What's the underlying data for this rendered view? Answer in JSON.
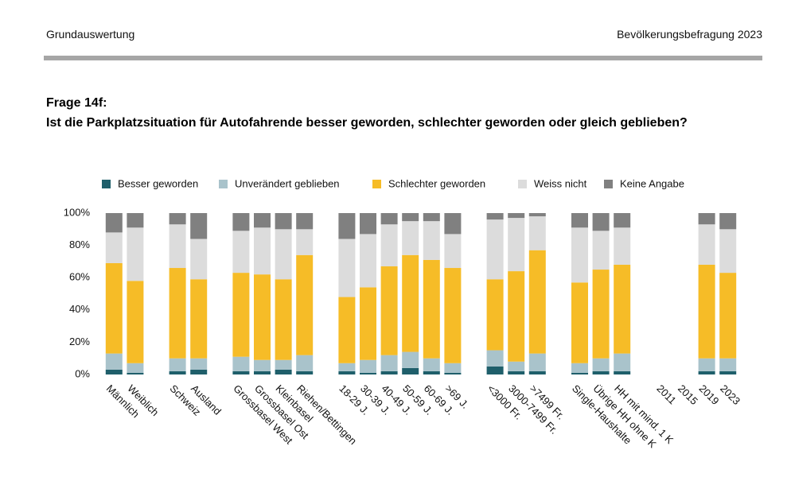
{
  "header": {
    "left": "Grundauswertung",
    "right": "Bevölkerungsbefragung 2023"
  },
  "question": {
    "label": "Frage 14f:",
    "text": "Ist die Parkplatzsituation für Autofahrende besser geworden, schlechter geworden oder gleich geblieben?"
  },
  "chart_data": {
    "type": "stacked_bar",
    "categories": [
      "Männlich",
      "Weiblich",
      null,
      "Schweiz",
      "Ausland",
      null,
      "Grossbasel West",
      "Grossbasel Ost",
      "Kleinbasel",
      "Riehen/Bettingen",
      null,
      "18-29 J.",
      "30-39 J.",
      "40-49 J.",
      "50-59 J.",
      "60-69 J.",
      ">69 J.",
      null,
      "<3000 Fr.",
      "3000-7499 Fr.",
      ">7499 Fr.",
      null,
      "Single-Haushalte",
      "Übrige HH ohne K",
      "HH mit mind. 1 K",
      null,
      "2011",
      "2015",
      "2019",
      "2023"
    ],
    "series": [
      {
        "name": "Besser geworden",
        "color": "#1f5f6b",
        "values": [
          3,
          1,
          null,
          2,
          3,
          null,
          2,
          2,
          3,
          2,
          null,
          2,
          1,
          2,
          4,
          2,
          1,
          null,
          5,
          2,
          2,
          null,
          1,
          2,
          2,
          null,
          null,
          null,
          2,
          2
        ]
      },
      {
        "name": "Unverändert geblieben",
        "color": "#a9c3cb",
        "values": [
          10,
          6,
          null,
          8,
          7,
          null,
          9,
          7,
          6,
          10,
          null,
          5,
          8,
          10,
          10,
          8,
          6,
          null,
          10,
          6,
          11,
          null,
          6,
          8,
          11,
          null,
          null,
          null,
          8,
          8
        ]
      },
      {
        "name": "Schlechter geworden",
        "color": "#f6bc27",
        "values": [
          56,
          51,
          null,
          56,
          49,
          null,
          52,
          53,
          50,
          62,
          null,
          41,
          45,
          55,
          60,
          61,
          59,
          null,
          44,
          56,
          64,
          null,
          50,
          55,
          55,
          null,
          null,
          null,
          58,
          53
        ]
      },
      {
        "name": "Weiss nicht",
        "color": "#dcdcdc",
        "values": [
          19,
          33,
          null,
          27,
          25,
          null,
          26,
          29,
          31,
          16,
          null,
          36,
          33,
          26,
          21,
          24,
          21,
          null,
          37,
          33,
          21,
          null,
          34,
          24,
          23,
          null,
          null,
          null,
          25,
          27
        ]
      },
      {
        "name": "Keine Angabe",
        "color": "#808080",
        "values": [
          12,
          9,
          null,
          7,
          16,
          null,
          11,
          9,
          10,
          10,
          null,
          16,
          13,
          7,
          5,
          5,
          13,
          null,
          4,
          3,
          2,
          null,
          9,
          11,
          9,
          null,
          null,
          null,
          7,
          10
        ]
      }
    ],
    "ylim": [
      0,
      100
    ],
    "yticks": [
      {
        "value": 0,
        "label": "0%"
      },
      {
        "value": 20,
        "label": "20%"
      },
      {
        "value": 40,
        "label": "40%"
      },
      {
        "value": 60,
        "label": "60%"
      },
      {
        "value": 80,
        "label": "80%"
      },
      {
        "value": 100,
        "label": "100%"
      }
    ],
    "grid": false
  }
}
